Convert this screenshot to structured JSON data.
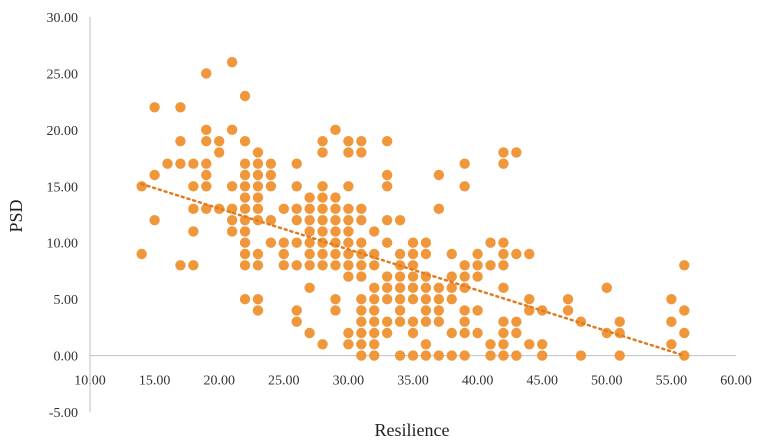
{
  "chart_data": {
    "type": "scatter",
    "title": "",
    "xlabel": "Resilience",
    "ylabel": "PSD",
    "xlim": [
      10,
      60
    ],
    "ylim": [
      -5,
      30
    ],
    "xticks": [
      "10.00",
      "15.00",
      "20.00",
      "25.00",
      "30.00",
      "35.00",
      "40.00",
      "45.00",
      "50.00",
      "55.00",
      "60.00"
    ],
    "yticks": [
      "-5.00",
      "0.00",
      "5.00",
      "10.00",
      "15.00",
      "20.00",
      "25.00",
      "30.00"
    ],
    "grid": false,
    "legend": "none",
    "marker_color": "#F0973C",
    "trendline": {
      "type": "linear",
      "color": "#E07B1F",
      "style": "dotted",
      "x_start": 14,
      "y_start": 15.2,
      "x_end": 56,
      "y_end": 0
    },
    "series": [
      {
        "points": [
          [
            14,
            15
          ],
          [
            14,
            9
          ],
          [
            15,
            22
          ],
          [
            15,
            16
          ],
          [
            15,
            12
          ],
          [
            16,
            17
          ],
          [
            17,
            22
          ],
          [
            17,
            19
          ],
          [
            17,
            17
          ],
          [
            17,
            8
          ],
          [
            18,
            17
          ],
          [
            18,
            15
          ],
          [
            18,
            13
          ],
          [
            18,
            11
          ],
          [
            18,
            8
          ],
          [
            19,
            25
          ],
          [
            19,
            20
          ],
          [
            19,
            19
          ],
          [
            19,
            17
          ],
          [
            19,
            16
          ],
          [
            19,
            15
          ],
          [
            19,
            13
          ],
          [
            20,
            19
          ],
          [
            20,
            18
          ],
          [
            20,
            13
          ],
          [
            21,
            26
          ],
          [
            21,
            20
          ],
          [
            21,
            15
          ],
          [
            21,
            13
          ],
          [
            21,
            12
          ],
          [
            21,
            11
          ],
          [
            22,
            23
          ],
          [
            22,
            19
          ],
          [
            22,
            17
          ],
          [
            22,
            16
          ],
          [
            22,
            15
          ],
          [
            22,
            14
          ],
          [
            22,
            13
          ],
          [
            22,
            12
          ],
          [
            22,
            11
          ],
          [
            22,
            10
          ],
          [
            22,
            9
          ],
          [
            22,
            8
          ],
          [
            22,
            5
          ],
          [
            23,
            18
          ],
          [
            23,
            17
          ],
          [
            23,
            16
          ],
          [
            23,
            15
          ],
          [
            23,
            14
          ],
          [
            23,
            13
          ],
          [
            23,
            12
          ],
          [
            23,
            9
          ],
          [
            23,
            8
          ],
          [
            23,
            5
          ],
          [
            23,
            4
          ],
          [
            24,
            17
          ],
          [
            24,
            16
          ],
          [
            24,
            15
          ],
          [
            24,
            12
          ],
          [
            24,
            10
          ],
          [
            25,
            13
          ],
          [
            25,
            10
          ],
          [
            25,
            9
          ],
          [
            25,
            8
          ],
          [
            26,
            17
          ],
          [
            26,
            15
          ],
          [
            26,
            13
          ],
          [
            26,
            12
          ],
          [
            26,
            10
          ],
          [
            26,
            8
          ],
          [
            26,
            4
          ],
          [
            26,
            3
          ],
          [
            27,
            14
          ],
          [
            27,
            13
          ],
          [
            27,
            12
          ],
          [
            27,
            11
          ],
          [
            27,
            10
          ],
          [
            27,
            9
          ],
          [
            27,
            8
          ],
          [
            27,
            6
          ],
          [
            27,
            2
          ],
          [
            28,
            19
          ],
          [
            28,
            18
          ],
          [
            28,
            15
          ],
          [
            28,
            14
          ],
          [
            28,
            13
          ],
          [
            28,
            12
          ],
          [
            28,
            11
          ],
          [
            28,
            10
          ],
          [
            28,
            9
          ],
          [
            28,
            8
          ],
          [
            28,
            1
          ],
          [
            29,
            20
          ],
          [
            29,
            14
          ],
          [
            29,
            13
          ],
          [
            29,
            12
          ],
          [
            29,
            11
          ],
          [
            29,
            10
          ],
          [
            29,
            9
          ],
          [
            29,
            8
          ],
          [
            29,
            5
          ],
          [
            29,
            4
          ],
          [
            30,
            19
          ],
          [
            30,
            18
          ],
          [
            30,
            15
          ],
          [
            30,
            13
          ],
          [
            30,
            12
          ],
          [
            30,
            11
          ],
          [
            30,
            10
          ],
          [
            30,
            9
          ],
          [
            30,
            8
          ],
          [
            30,
            7
          ],
          [
            30,
            2
          ],
          [
            30,
            1
          ],
          [
            31,
            19
          ],
          [
            31,
            18
          ],
          [
            31,
            13
          ],
          [
            31,
            12
          ],
          [
            31,
            10
          ],
          [
            31,
            9
          ],
          [
            31,
            8
          ],
          [
            31,
            7
          ],
          [
            31,
            5
          ],
          [
            31,
            4
          ],
          [
            31,
            3
          ],
          [
            31,
            2
          ],
          [
            31,
            1
          ],
          [
            31,
            0
          ],
          [
            32,
            11
          ],
          [
            32,
            9
          ],
          [
            32,
            8
          ],
          [
            32,
            6
          ],
          [
            32,
            5
          ],
          [
            32,
            4
          ],
          [
            32,
            3
          ],
          [
            32,
            2
          ],
          [
            32,
            1
          ],
          [
            32,
            0
          ],
          [
            33,
            19
          ],
          [
            33,
            16
          ],
          [
            33,
            15
          ],
          [
            33,
            12
          ],
          [
            33,
            10
          ],
          [
            33,
            7
          ],
          [
            33,
            6
          ],
          [
            33,
            5
          ],
          [
            33,
            3
          ],
          [
            33,
            2
          ],
          [
            34,
            12
          ],
          [
            34,
            9
          ],
          [
            34,
            8
          ],
          [
            34,
            7
          ],
          [
            34,
            6
          ],
          [
            34,
            5
          ],
          [
            34,
            4
          ],
          [
            34,
            3
          ],
          [
            34,
            0
          ],
          [
            35,
            10
          ],
          [
            35,
            9
          ],
          [
            35,
            8
          ],
          [
            35,
            7
          ],
          [
            35,
            6
          ],
          [
            35,
            5
          ],
          [
            35,
            3
          ],
          [
            35,
            2
          ],
          [
            35,
            0
          ],
          [
            36,
            10
          ],
          [
            36,
            9
          ],
          [
            36,
            7
          ],
          [
            36,
            6
          ],
          [
            36,
            5
          ],
          [
            36,
            4
          ],
          [
            36,
            3
          ],
          [
            36,
            1
          ],
          [
            36,
            0
          ],
          [
            37,
            16
          ],
          [
            37,
            13
          ],
          [
            37,
            6
          ],
          [
            37,
            5
          ],
          [
            37,
            4
          ],
          [
            37,
            3
          ],
          [
            37,
            0
          ],
          [
            38,
            9
          ],
          [
            38,
            7
          ],
          [
            38,
            6
          ],
          [
            38,
            5
          ],
          [
            38,
            2
          ],
          [
            38,
            0
          ],
          [
            39,
            17
          ],
          [
            39,
            15
          ],
          [
            39,
            8
          ],
          [
            39,
            7
          ],
          [
            39,
            6
          ],
          [
            39,
            4
          ],
          [
            39,
            3
          ],
          [
            39,
            2
          ],
          [
            39,
            0
          ],
          [
            40,
            9
          ],
          [
            40,
            8
          ],
          [
            40,
            7
          ],
          [
            40,
            4
          ],
          [
            40,
            2
          ],
          [
            41,
            10
          ],
          [
            41,
            8
          ],
          [
            41,
            1
          ],
          [
            41,
            0
          ],
          [
            42,
            18
          ],
          [
            42,
            17
          ],
          [
            42,
            10
          ],
          [
            42,
            9
          ],
          [
            42,
            8
          ],
          [
            42,
            6
          ],
          [
            42,
            3
          ],
          [
            42,
            2
          ],
          [
            42,
            1
          ],
          [
            42,
            0
          ],
          [
            43,
            18
          ],
          [
            43,
            9
          ],
          [
            43,
            3
          ],
          [
            43,
            2
          ],
          [
            43,
            0
          ],
          [
            44,
            9
          ],
          [
            44,
            5
          ],
          [
            44,
            4
          ],
          [
            44,
            1
          ],
          [
            45,
            4
          ],
          [
            45,
            1
          ],
          [
            45,
            0
          ],
          [
            47,
            5
          ],
          [
            47,
            4
          ],
          [
            48,
            3
          ],
          [
            48,
            0
          ],
          [
            50,
            6
          ],
          [
            50,
            2
          ],
          [
            51,
            3
          ],
          [
            51,
            2
          ],
          [
            51,
            0
          ],
          [
            55,
            5
          ],
          [
            55,
            3
          ],
          [
            55,
            1
          ],
          [
            56,
            8
          ],
          [
            56,
            4
          ],
          [
            56,
            2
          ],
          [
            56,
            0
          ]
        ]
      }
    ]
  }
}
